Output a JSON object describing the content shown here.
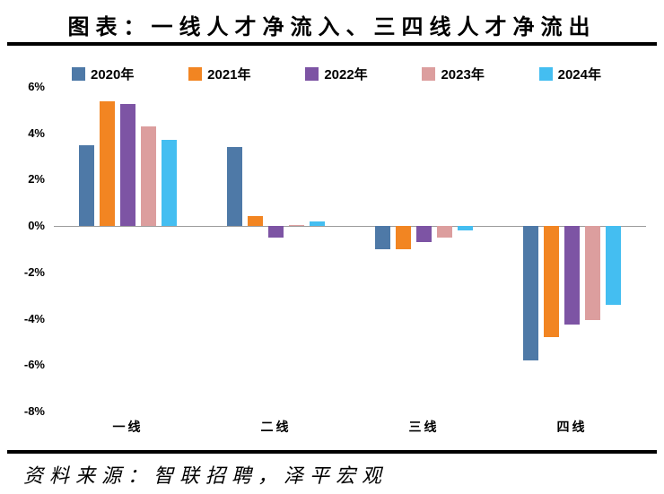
{
  "title": "图表：一线人才净流入、三四线人才净流出",
  "source": "资料来源：智联招聘，泽平宏观",
  "colors": {
    "axis_line": "#9c9c9c",
    "divider": "#000000",
    "text": "#000000"
  },
  "chart_data": {
    "type": "bar",
    "title": "图表：一线人才净流入、三四线人才净流出",
    "xlabel": "",
    "ylabel": "",
    "categories": [
      "一线",
      "二线",
      "三线",
      "四线"
    ],
    "series": [
      {
        "name": "2020年",
        "color": "#4E79A7",
        "values": [
          3.5,
          3.4,
          -1.0,
          -5.8
        ]
      },
      {
        "name": "2021年",
        "color": "#F28522",
        "values": [
          5.4,
          0.45,
          -1.0,
          -4.8
        ]
      },
      {
        "name": "2022年",
        "color": "#7D54A4",
        "values": [
          5.25,
          -0.5,
          -0.7,
          -4.25
        ]
      },
      {
        "name": "2023年",
        "color": "#DC9E9E",
        "values": [
          4.3,
          0.05,
          -0.5,
          -4.05
        ]
      },
      {
        "name": "2024年",
        "color": "#44BEF1",
        "values": [
          3.7,
          0.2,
          -0.2,
          -3.4
        ]
      }
    ],
    "ylim": [
      -8,
      6
    ],
    "yticks": [
      6,
      4,
      2,
      0,
      -2,
      -4,
      -6,
      -8
    ],
    "ytick_labels": [
      "6%",
      "4%",
      "2%",
      "0%",
      "-2%",
      "-4%",
      "-6%",
      "-8%"
    ],
    "grid": false,
    "legend_position": "top"
  }
}
